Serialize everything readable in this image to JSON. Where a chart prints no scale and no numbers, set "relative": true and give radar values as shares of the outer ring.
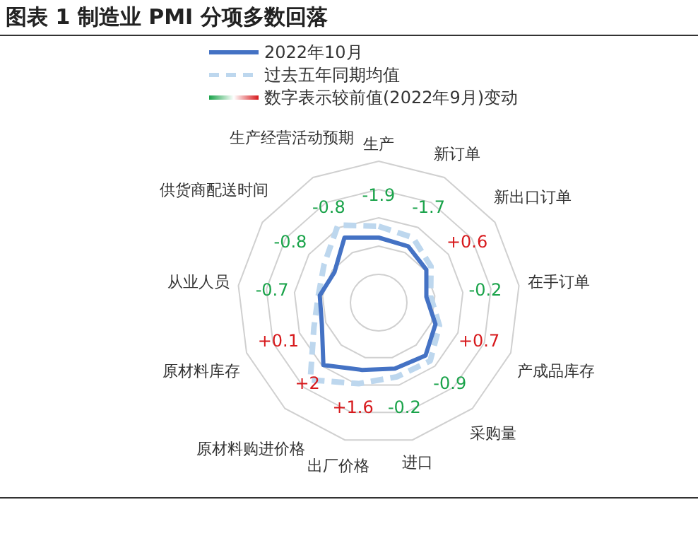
{
  "chart_data": {
    "type": "radar",
    "title": "图表 1  制造业 PMI 分项多数回落",
    "relative": true,
    "grid": true,
    "legend": "top",
    "categories": [
      "生产",
      "新订单",
      "新出口订单",
      "在手订单",
      "产成品库存",
      "采购量",
      "进口",
      "出厂价格",
      "原材料购进价格",
      "原材料库存",
      "从业人员",
      "供货商配送时间",
      "生产经营活动预期"
    ],
    "series": [
      {
        "name": "2022年10月",
        "color": "#4472c4",
        "line_style": "solid",
        "values": [
          0.46,
          0.45,
          0.41,
          0.34,
          0.43,
          0.5,
          0.48,
          0.49,
          0.59,
          0.43,
          0.42,
          0.38,
          0.52
        ]
      },
      {
        "name": "过去五年同期均值",
        "color": "#bdd7ee",
        "line_style": "dashed",
        "values": [
          0.54,
          0.52,
          0.45,
          0.37,
          0.46,
          0.55,
          0.54,
          0.59,
          0.73,
          0.49,
          0.43,
          0.47,
          0.62
        ]
      }
    ],
    "annotations": [
      "数字表示较前值(2022年9月)变动",
      {
        "text": "-1.9",
        "x": "生产"
      },
      {
        "text": "-1.7",
        "x": "新订单"
      },
      {
        "text": "+0.6",
        "x": "新出口订单"
      },
      {
        "text": "-0.2",
        "x": "在手订单"
      },
      {
        "text": "+0.7",
        "x": "产成品库存"
      },
      {
        "text": "-0.9",
        "x": "采购量"
      },
      {
        "text": "-0.2",
        "x": "进口"
      },
      {
        "text": "+1.6",
        "x": "出厂价格"
      },
      {
        "text": "+2",
        "x": "原材料购进价格"
      },
      {
        "text": "+0.1",
        "x": "原材料库存"
      },
      {
        "text": "-0.7",
        "x": "从业人员"
      },
      {
        "text": "-0.8",
        "x": "供货商配送时间"
      },
      {
        "text": "-0.8",
        "x": "生产经营活动预期"
      }
    ]
  }
}
